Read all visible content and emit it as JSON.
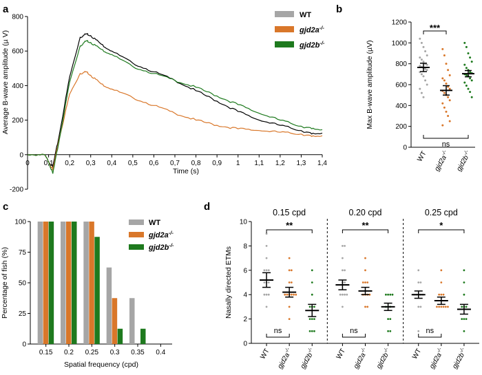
{
  "colors": {
    "wt": "#a6a6a6",
    "gjd2a": "#d9772a",
    "gjd2b": "#1e7a1e",
    "black": "#000000"
  },
  "panels": {
    "a": "a",
    "b": "b",
    "c": "c",
    "d": "d"
  },
  "chart_data": [
    {
      "id": "a",
      "type": "line",
      "xlabel": "Time (s)",
      "ylabel": "Average B-wave amplitude (µ V)",
      "xlim": [
        0,
        1.4
      ],
      "ylim": [
        -200,
        800
      ],
      "xticks": [
        "0",
        "0,1",
        "0,2",
        "0,3",
        "0,4",
        "0,5",
        "0,6",
        "0,7",
        "0,8",
        "0,9",
        "1",
        "1,1",
        "1,2",
        "1,3",
        "1,4"
      ],
      "yticks": [
        "-200",
        "0",
        "200",
        "400",
        "600",
        "800"
      ],
      "legend": [
        {
          "name": "WT",
          "sup": "",
          "color": "#a6a6a6",
          "italic": false
        },
        {
          "name": "gjd2a",
          "sup": "-/-",
          "color": "#d9772a",
          "italic": true
        },
        {
          "name": "gjd2b",
          "sup": "-/-",
          "color": "#1e7a1e",
          "italic": true
        }
      ],
      "series": [
        {
          "name": "WT",
          "color": "#000000",
          "x": [
            0,
            0.08,
            0.1,
            0.12,
            0.15,
            0.2,
            0.25,
            0.28,
            0.3,
            0.35,
            0.4,
            0.5,
            0.6,
            0.7,
            0.8,
            0.9,
            1.0,
            1.1,
            1.2,
            1.3,
            1.35,
            1.4
          ],
          "y": [
            0,
            0,
            -40,
            -70,
            110,
            450,
            680,
            700,
            690,
            640,
            600,
            530,
            480,
            430,
            370,
            310,
            250,
            200,
            170,
            140,
            120,
            125
          ]
        },
        {
          "name": "gjd2a",
          "color": "#d9772a",
          "x": [
            0,
            0.08,
            0.1,
            0.12,
            0.15,
            0.2,
            0.25,
            0.28,
            0.3,
            0.35,
            0.4,
            0.5,
            0.6,
            0.7,
            0.8,
            0.9,
            1.0,
            1.1,
            1.2,
            1.3,
            1.35,
            1.4
          ],
          "y": [
            0,
            0,
            -40,
            -90,
            90,
            350,
            470,
            480,
            460,
            410,
            380,
            330,
            285,
            240,
            200,
            170,
            150,
            140,
            130,
            120,
            105,
            110
          ]
        },
        {
          "name": "gjd2b",
          "color": "#1e7a1e",
          "x": [
            0,
            0.08,
            0.1,
            0.12,
            0.15,
            0.2,
            0.25,
            0.28,
            0.3,
            0.35,
            0.4,
            0.5,
            0.6,
            0.7,
            0.8,
            0.9,
            1.0,
            1.1,
            1.2,
            1.3,
            1.35,
            1.4
          ],
          "y": [
            0,
            0,
            -40,
            -110,
            80,
            420,
            630,
            660,
            650,
            610,
            580,
            510,
            470,
            430,
            390,
            340,
            290,
            240,
            200,
            165,
            150,
            145
          ]
        }
      ]
    },
    {
      "id": "b",
      "type": "scatter",
      "ylabel": "Max B-wave amplitude (µV)",
      "ylim": [
        0,
        1200
      ],
      "yticks": [
        "0",
        "200",
        "400",
        "600",
        "800",
        "1000",
        "1200"
      ],
      "groups": [
        {
          "label": "WT",
          "italic": false,
          "sup": "",
          "color": "#a6a6a6",
          "mean": 765,
          "sem": 40,
          "points": [
            1040,
            1000,
            960,
            920,
            880,
            860,
            840,
            820,
            800,
            790,
            780,
            770,
            760,
            750,
            740,
            720,
            700,
            680,
            640,
            600,
            560,
            520,
            480
          ]
        },
        {
          "label": "gjd2a",
          "italic": true,
          "sup": "-/-",
          "color": "#d9772a",
          "mean": 545,
          "sem": 45,
          "points": [
            940,
            880,
            800,
            740,
            690,
            660,
            640,
            610,
            580,
            560,
            540,
            520,
            500,
            480,
            450,
            420,
            380,
            340,
            300,
            250,
            210
          ]
        },
        {
          "label": "gjd2b",
          "italic": true,
          "sup": "-/-",
          "color": "#1e7a1e",
          "mean": 705,
          "sem": 30,
          "points": [
            1000,
            960,
            900,
            860,
            820,
            790,
            760,
            740,
            720,
            710,
            700,
            690,
            680,
            660,
            640,
            620,
            590,
            560,
            530,
            480
          ]
        }
      ],
      "significance_top": "***",
      "significance_bottom": "ns"
    },
    {
      "id": "c",
      "type": "bar",
      "xlabel": "Spatial frequency (cpd)",
      "ylabel": "Percentage of fish (%)",
      "ylim": [
        0,
        100
      ],
      "yticks": [
        "0",
        "25",
        "50",
        "75",
        "100"
      ],
      "categories": [
        "0.15",
        "0.2",
        "0.25",
        "0.3",
        "0.35",
        "0.4"
      ],
      "series": [
        {
          "name": "WT",
          "color": "#a6a6a6",
          "values": [
            100,
            100,
            100,
            62.5,
            37.5,
            0
          ]
        },
        {
          "name": "gjd2a",
          "color": "#d9772a",
          "values": [
            100,
            100,
            100,
            37.5,
            0,
            0
          ]
        },
        {
          "name": "gjd2b",
          "color": "#1e7a1e",
          "values": [
            100,
            100,
            87.5,
            12.5,
            12.5,
            0
          ]
        }
      ],
      "legend": [
        {
          "name": "WT",
          "sup": "",
          "color": "#a6a6a6",
          "italic": false
        },
        {
          "name": "gjd2a",
          "sup": "-/-",
          "color": "#d9772a",
          "italic": true
        },
        {
          "name": "gjd2b",
          "sup": "-/-",
          "color": "#1e7a1e",
          "italic": true
        }
      ]
    },
    {
      "id": "d",
      "type": "scatter",
      "ylabel": "Nasally directed ETMs",
      "ylim": [
        0,
        10
      ],
      "yticks": [
        "0",
        "2",
        "4",
        "6",
        "8",
        "10"
      ],
      "subpanels": [
        {
          "title": "0.15 cpd",
          "sig_top": "**",
          "sig_bottom": "ns",
          "groups": [
            {
              "label": "WT",
              "italic": false,
              "sup": "",
              "color": "#a6a6a6",
              "mean": 5.2,
              "sem": 0.6,
              "points": [
                9,
                8,
                7,
                6,
                6,
                6,
                5,
                5,
                5,
                4,
                4,
                4,
                3
              ]
            },
            {
              "label": "gjd2a",
              "italic": true,
              "sup": "-/-",
              "color": "#d9772a",
              "mean": 4.2,
              "sem": 0.4,
              "points": [
                7,
                6,
                6,
                5,
                5,
                4,
                4,
                4,
                4,
                4,
                4,
                3,
                2
              ]
            },
            {
              "label": "gjd2b",
              "italic": true,
              "sup": "-/-",
              "color": "#1e7a1e",
              "mean": 2.7,
              "sem": 0.5,
              "points": [
                6,
                5,
                4,
                3,
                3,
                3,
                2,
                2,
                2,
                1,
                1,
                1
              ]
            }
          ]
        },
        {
          "title": "0.20 cpd",
          "sig_top": "**",
          "sig_bottom": "ns",
          "groups": [
            {
              "label": "WT",
              "italic": false,
              "sup": "",
              "color": "#a6a6a6",
              "mean": 4.8,
              "sem": 0.4,
              "points": [
                8,
                8,
                7,
                6,
                6,
                5,
                5,
                4,
                4,
                4,
                4,
                3
              ]
            },
            {
              "label": "gjd2a",
              "italic": true,
              "sup": "-/-",
              "color": "#d9772a",
              "mean": 4.3,
              "sem": 0.3,
              "points": [
                7,
                6,
                5,
                5,
                5,
                4,
                4,
                4,
                4,
                3,
                3
              ]
            },
            {
              "label": "gjd2b",
              "italic": true,
              "sup": "-/-",
              "color": "#1e7a1e",
              "mean": 3.0,
              "sem": 0.3,
              "points": [
                4,
                4,
                4,
                4,
                3,
                3,
                3,
                2,
                2,
                1,
                1
              ]
            }
          ]
        },
        {
          "title": "0.25 cpd",
          "sig_top": "*",
          "sig_bottom": "ns",
          "groups": [
            {
              "label": "WT",
              "italic": false,
              "sup": "",
              "color": "#a6a6a6",
              "mean": 4.0,
              "sem": 0.3,
              "points": [
                6,
                5,
                5,
                4,
                4,
                4,
                4,
                4,
                3,
                3,
                1
              ]
            },
            {
              "label": "gjd2a",
              "italic": true,
              "sup": "-/-",
              "color": "#d9772a",
              "mean": 3.5,
              "sem": 0.3,
              "points": [
                6,
                5,
                4,
                4,
                4,
                3,
                3,
                3,
                3,
                3,
                3
              ]
            },
            {
              "label": "gjd2b",
              "italic": true,
              "sup": "-/-",
              "color": "#1e7a1e",
              "mean": 2.8,
              "sem": 0.4,
              "points": [
                6,
                5,
                4,
                3,
                3,
                3,
                2,
                2,
                2,
                1
              ]
            }
          ]
        }
      ]
    }
  ]
}
